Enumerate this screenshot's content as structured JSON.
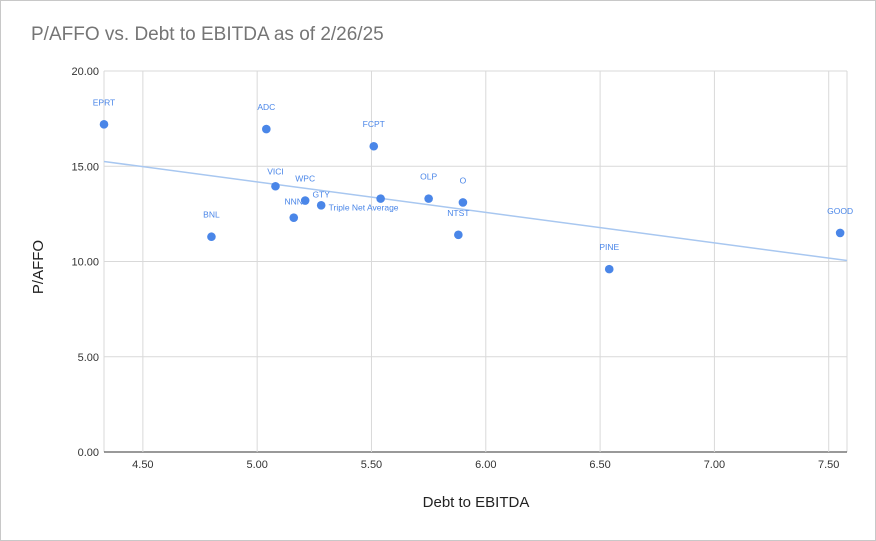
{
  "chart_data": {
    "type": "scatter",
    "title": "P/AFFO vs. Debt to EBITDA as of 2/26/25",
    "xlabel": "Debt to EBITDA",
    "ylabel": "P/AFFO",
    "xlim": [
      4.33,
      7.58
    ],
    "ylim": [
      0,
      20
    ],
    "x_ticks": [
      "4.50",
      "5.00",
      "5.50",
      "6.00",
      "6.50",
      "7.00",
      "7.50"
    ],
    "y_ticks": [
      "0.00",
      "5.00",
      "10.00",
      "15.00",
      "20.00"
    ],
    "grid": true,
    "legend": "none",
    "colors": {
      "points": "#4a86e8",
      "trendline": "#a8c7f0",
      "grid": "#d9d9d9"
    },
    "points": [
      {
        "label": "EPRT",
        "x": 4.33,
        "y": 17.2
      },
      {
        "label": "BNL",
        "x": 4.8,
        "y": 11.3
      },
      {
        "label": "ADC",
        "x": 5.04,
        "y": 16.95
      },
      {
        "label": "VICI",
        "x": 5.08,
        "y": 13.95
      },
      {
        "label": "NNN",
        "x": 5.16,
        "y": 12.3
      },
      {
        "label": "WPC",
        "x": 5.21,
        "y": 13.2
      },
      {
        "label": "GTY",
        "x": 5.28,
        "y": 12.95
      },
      {
        "label": "FCPT",
        "x": 5.51,
        "y": 16.05
      },
      {
        "label": "Triple Net Average",
        "x": 5.54,
        "y": 13.3
      },
      {
        "label": "OLP",
        "x": 5.75,
        "y": 13.3
      },
      {
        "label": "NTST",
        "x": 5.88,
        "y": 11.4
      },
      {
        "label": "O",
        "x": 5.9,
        "y": 13.1
      },
      {
        "label": "PINE",
        "x": 6.54,
        "y": 9.6
      },
      {
        "label": "GOOD",
        "x": 7.55,
        "y": 11.5
      }
    ],
    "trendline": {
      "x": [
        4.33,
        7.58
      ],
      "y": [
        15.25,
        10.05
      ]
    }
  }
}
